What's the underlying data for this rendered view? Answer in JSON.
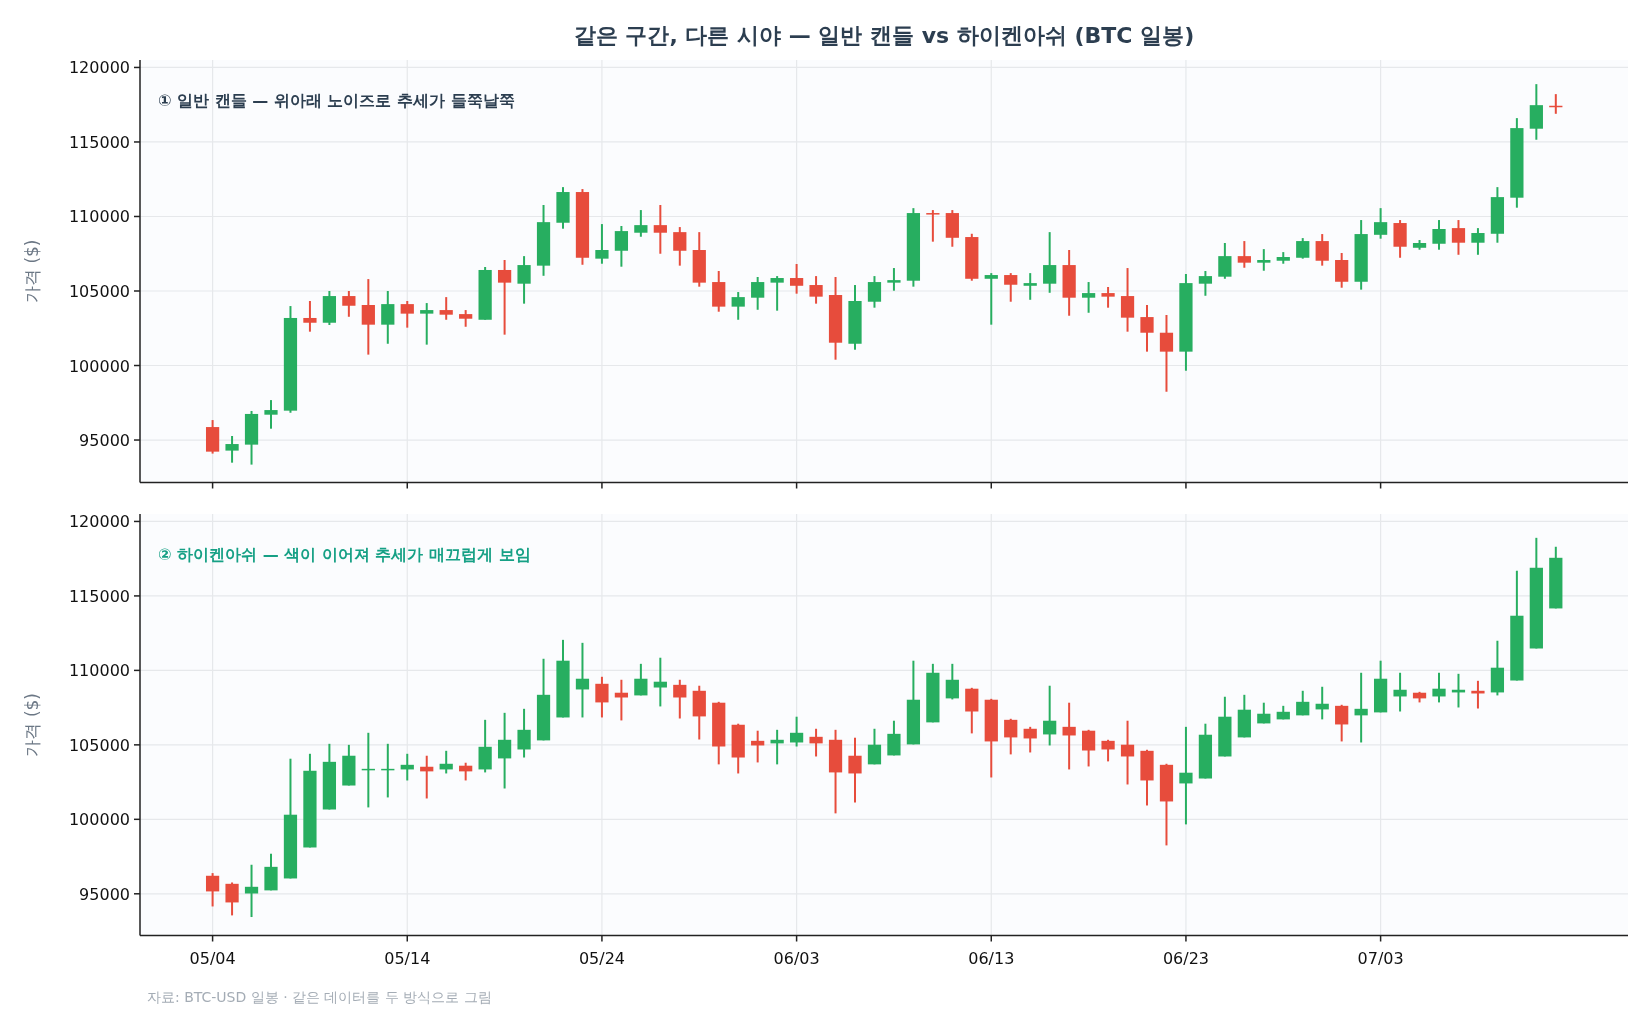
{
  "chart_data": [
    {
      "type": "candlestick",
      "title": "같은 구간, 다른 시야 — 일반 캔들 vs 하이켄아쉬 (BTC 일봉)",
      "subtitle": "① 일반 캔들 — 위아래 노이즈로 추세가 들쭉날쭉",
      "ylabel": "가격 ($)",
      "x": [
        "--05-04",
        "--05-05",
        "--05-06",
        "--05-07",
        "--05-08",
        "--05-09",
        "--05-10",
        "--05-11",
        "--05-12",
        "--05-13",
        "--05-14",
        "--05-15",
        "--05-16",
        "--05-17",
        "--05-18",
        "--05-19",
        "--05-20",
        "--05-21",
        "--05-22",
        "--05-23",
        "--05-24",
        "--05-25",
        "--05-26",
        "--05-27",
        "--05-28",
        "--05-29",
        "--05-30",
        "--05-31",
        "--06-01",
        "--06-02",
        "--06-03",
        "--06-04",
        "--06-05",
        "--06-06",
        "--06-07",
        "--06-08",
        "--06-09",
        "--06-10",
        "--06-11",
        "--06-12",
        "--06-13",
        "--06-14",
        "--06-15",
        "--06-16",
        "--06-17",
        "--06-18",
        "--06-19",
        "--06-20",
        "--06-21",
        "--06-22",
        "--06-23",
        "--06-24",
        "--06-25",
        "--06-26",
        "--06-27",
        "--06-28",
        "--06-29",
        "--06-30",
        "--07-01",
        "--07-02",
        "--07-03",
        "--07-04",
        "--07-05",
        "--07-06",
        "--07-07",
        "--07-08",
        "--07-09",
        "--07-10",
        "--07-11",
        "--07-12"
      ],
      "ohlc": [
        [
          95870,
          96340,
          94090,
          94220
        ],
        [
          94290,
          95270,
          93480,
          94730
        ],
        [
          94690,
          96950,
          93350,
          96750
        ],
        [
          96700,
          97680,
          95760,
          97010
        ],
        [
          96970,
          103990,
          96830,
          103190
        ],
        [
          103190,
          104330,
          102270,
          102870
        ],
        [
          102870,
          105000,
          102720,
          104660
        ],
        [
          104660,
          105000,
          103270,
          104010
        ],
        [
          104060,
          105800,
          100730,
          102740
        ],
        [
          102740,
          105000,
          101460,
          104120
        ],
        [
          104120,
          104330,
          102540,
          103480
        ],
        [
          103480,
          104190,
          101400,
          103720
        ],
        [
          103720,
          104590,
          103070,
          103410
        ],
        [
          103450,
          103720,
          102600,
          103140
        ],
        [
          103070,
          106610,
          103070,
          106410
        ],
        [
          106410,
          107080,
          102070,
          105560
        ],
        [
          105490,
          107340,
          104150,
          106740
        ],
        [
          106700,
          110770,
          106020,
          109620
        ],
        [
          109580,
          111970,
          109180,
          111640
        ],
        [
          111640,
          111840,
          106760,
          107230
        ],
        [
          107170,
          109490,
          106830,
          107750
        ],
        [
          107700,
          109360,
          106630,
          109020
        ],
        [
          108910,
          110430,
          108640,
          109420
        ],
        [
          109420,
          110770,
          107500,
          108910
        ],
        [
          108950,
          109290,
          106700,
          107700
        ],
        [
          107750,
          108950,
          105290,
          105560
        ],
        [
          105600,
          106340,
          103610,
          103950
        ],
        [
          103950,
          104930,
          103070,
          104590
        ],
        [
          104550,
          105940,
          103740,
          105600
        ],
        [
          105560,
          106000,
          103680,
          105870
        ],
        [
          105870,
          106810,
          104820,
          105350
        ],
        [
          105400,
          106000,
          104150,
          104620
        ],
        [
          104730,
          105940,
          100390,
          101530
        ],
        [
          101460,
          105400,
          101060,
          104330
        ],
        [
          104280,
          106000,
          103880,
          105600
        ],
        [
          105560,
          106540,
          105020,
          105730
        ],
        [
          105690,
          110560,
          105290,
          110230
        ],
        [
          110230,
          110430,
          108310,
          110180
        ],
        [
          110230,
          110430,
          107970,
          108570
        ],
        [
          108620,
          108840,
          105690,
          105820
        ],
        [
          105820,
          106200,
          102740,
          106070
        ],
        [
          106070,
          106200,
          104280,
          105420
        ],
        [
          105350,
          106200,
          104410,
          105530
        ],
        [
          105490,
          108950,
          104880,
          106740
        ],
        [
          106740,
          107750,
          103340,
          104550
        ],
        [
          104550,
          105600,
          103540,
          104860
        ],
        [
          104860,
          105270,
          103880,
          104620
        ],
        [
          104660,
          106540,
          102270,
          103210
        ],
        [
          103250,
          104060,
          100930,
          102200
        ],
        [
          102200,
          103390,
          98240,
          100930
        ],
        [
          100930,
          106140,
          99650,
          105530
        ],
        [
          105490,
          106340,
          104680,
          106000
        ],
        [
          105960,
          108220,
          105820,
          107340
        ],
        [
          107340,
          108350,
          106560,
          106900
        ],
        [
          106900,
          107810,
          106360,
          107080
        ],
        [
          107030,
          107610,
          106830,
          107280
        ],
        [
          107230,
          108550,
          107170,
          108350
        ],
        [
          108350,
          108820,
          106700,
          107030
        ],
        [
          107080,
          107550,
          105220,
          105620
        ],
        [
          105620,
          109760,
          105090,
          108820
        ],
        [
          108770,
          110560,
          108510,
          109620
        ],
        [
          109560,
          109760,
          107230,
          107970
        ],
        [
          107900,
          108420,
          107770,
          108220
        ],
        [
          108170,
          109760,
          107770,
          109160
        ],
        [
          109220,
          109760,
          107430,
          108240
        ],
        [
          108240,
          109220,
          107430,
          108890
        ],
        [
          108840,
          111970,
          108240,
          111300
        ],
        [
          111260,
          116600,
          110590,
          115930
        ],
        [
          115890,
          118880,
          115150,
          117470
        ],
        [
          117430,
          118210,
          116890,
          117400
        ]
      ],
      "colors": [
        "#e74c3c",
        "#27ae60",
        "#27ae60",
        "#27ae60",
        "#27ae60",
        "#e74c3c",
        "#27ae60",
        "#e74c3c",
        "#e74c3c",
        "#27ae60",
        "#e74c3c",
        "#27ae60",
        "#e74c3c",
        "#e74c3c",
        "#27ae60",
        "#e74c3c",
        "#27ae60",
        "#27ae60",
        "#27ae60",
        "#e74c3c",
        "#27ae60",
        "#27ae60",
        "#27ae60",
        "#e74c3c",
        "#e74c3c",
        "#e74c3c",
        "#e74c3c",
        "#27ae60",
        "#27ae60",
        "#27ae60",
        "#e74c3c",
        "#e74c3c",
        "#e74c3c",
        "#27ae60",
        "#27ae60",
        "#27ae60",
        "#27ae60",
        "#e74c3c",
        "#e74c3c",
        "#e74c3c",
        "#27ae60",
        "#e74c3c",
        "#27ae60",
        "#27ae60",
        "#e74c3c",
        "#27ae60",
        "#e74c3c",
        "#e74c3c",
        "#e74c3c",
        "#e74c3c",
        "#27ae60",
        "#27ae60",
        "#27ae60",
        "#e74c3c",
        "#27ae60",
        "#27ae60",
        "#27ae60",
        "#e74c3c",
        "#e74c3c",
        "#27ae60",
        "#27ae60",
        "#e74c3c",
        "#27ae60",
        "#27ae60",
        "#e74c3c",
        "#27ae60",
        "#27ae60",
        "#27ae60",
        "#27ae60",
        "#e74c3c"
      ],
      "xlim": [
        "--04-30T06:30",
        "--07-15T17:00"
      ],
      "xticks": [
        {
          "value": "--05-04",
          "label": null
        },
        {
          "value": "--05-14",
          "label": null
        },
        {
          "value": "--05-24",
          "label": null
        },
        {
          "value": "--06-03",
          "label": null
        },
        {
          "value": "--06-13",
          "label": null
        },
        {
          "value": "--06-23",
          "label": null
        },
        {
          "value": "--07-03",
          "label": null
        }
      ],
      "ylim": [
        92150,
        120500
      ],
      "yticks": [
        95000,
        100000,
        105000,
        110000,
        115000,
        120000
      ],
      "grid": true,
      "tick_labels": "y"
    },
    {
      "type": "candlestick",
      "subtitle": "② 하이켄아쉬 — 색이 이어져 추세가 매끄럽게 보임",
      "ylabel": "가격 ($)",
      "x": [
        "--05-04",
        "--05-05",
        "--05-06",
        "--05-07",
        "--05-08",
        "--05-09",
        "--05-10",
        "--05-11",
        "--05-12",
        "--05-13",
        "--05-14",
        "--05-15",
        "--05-16",
        "--05-17",
        "--05-18",
        "--05-19",
        "--05-20",
        "--05-21",
        "--05-22",
        "--05-23",
        "--05-24",
        "--05-25",
        "--05-26",
        "--05-27",
        "--05-28",
        "--05-29",
        "--05-30",
        "--05-31",
        "--06-01",
        "--06-02",
        "--06-03",
        "--06-04",
        "--06-05",
        "--06-06",
        "--06-07",
        "--06-08",
        "--06-09",
        "--06-10",
        "--06-11",
        "--06-12",
        "--06-13",
        "--06-14",
        "--06-15",
        "--06-16",
        "--06-17",
        "--06-18",
        "--06-19",
        "--06-20",
        "--06-21",
        "--06-22",
        "--06-23",
        "--06-24",
        "--06-25",
        "--06-26",
        "--06-27",
        "--06-28",
        "--06-29",
        "--06-30",
        "--07-01",
        "--07-02",
        "--07-03",
        "--07-04",
        "--07-05",
        "--07-06",
        "--07-07",
        "--07-08",
        "--07-09",
        "--07-10",
        "--07-11",
        "--07-12"
      ],
      "ohlc": [
        [
          96210,
          96390,
          94150,
          95160
        ],
        [
          95670,
          95760,
          93550,
          94420
        ],
        [
          95020,
          96950,
          93440,
          95470
        ],
        [
          95230,
          97690,
          95230,
          96810
        ],
        [
          96030,
          104070,
          96030,
          100310
        ],
        [
          98110,
          104400,
          98110,
          103260
        ],
        [
          100660,
          105070,
          100660,
          103860
        ],
        [
          102270,
          105000,
          102270,
          104270
        ],
        [
          103300,
          105810,
          100800,
          103390
        ],
        [
          103300,
          105070,
          101470,
          103390
        ],
        [
          103350,
          104400,
          102610,
          103660
        ],
        [
          103530,
          104270,
          101400,
          103220
        ],
        [
          103350,
          104600,
          103080,
          103730
        ],
        [
          103600,
          103800,
          102610,
          103220
        ],
        [
          103350,
          106680,
          103150,
          104870
        ],
        [
          104090,
          107150,
          102070,
          105340
        ],
        [
          104690,
          107420,
          104150,
          106010
        ],
        [
          105300,
          110780,
          105300,
          108360
        ],
        [
          106840,
          112050,
          106840,
          110650
        ],
        [
          108720,
          111850,
          106840,
          109440
        ],
        [
          109100,
          109570,
          106840,
          107850
        ],
        [
          108500,
          109370,
          106640,
          108180
        ],
        [
          108320,
          110440,
          108320,
          109440
        ],
        [
          108850,
          110850,
          107580,
          109240
        ],
        [
          109030,
          109370,
          106770,
          108180
        ],
        [
          108630,
          108970,
          105360,
          106910
        ],
        [
          107830,
          107890,
          103690,
          104890
        ],
        [
          106350,
          106420,
          103080,
          104150
        ],
        [
          105270,
          105950,
          103820,
          104960
        ],
        [
          105100,
          106010,
          103690,
          105340
        ],
        [
          105160,
          106890,
          104890,
          105810
        ],
        [
          105540,
          106080,
          104220,
          105100
        ],
        [
          105340,
          106010,
          100400,
          103150
        ],
        [
          104270,
          105480,
          101130,
          103080
        ],
        [
          103690,
          106080,
          103690,
          105010
        ],
        [
          104290,
          106620,
          104290,
          105740
        ],
        [
          105030,
          110650,
          105030,
          108030
        ],
        [
          106510,
          110440,
          106510,
          109840
        ],
        [
          108120,
          110440,
          108050,
          109370
        ],
        [
          108770,
          108830,
          105770,
          107240
        ],
        [
          108030,
          108090,
          102810,
          105230
        ],
        [
          106680,
          106750,
          104360,
          105500
        ],
        [
          106080,
          106210,
          104490,
          105430
        ],
        [
          105700,
          108970,
          104960,
          106620
        ],
        [
          106210,
          107830,
          103350,
          105630
        ],
        [
          105950,
          106010,
          103550,
          104620
        ],
        [
          105270,
          105340,
          103890,
          104690
        ],
        [
          105010,
          106620,
          102340,
          104220
        ],
        [
          104600,
          104670,
          100930,
          102610
        ],
        [
          103660,
          103730,
          98250,
          101200
        ],
        [
          102410,
          106210,
          99660,
          103130
        ],
        [
          102740,
          106420,
          102740,
          105680
        ],
        [
          104220,
          108230,
          104220,
          106890
        ],
        [
          105500,
          108360,
          105500,
          107360
        ],
        [
          106440,
          107830,
          106440,
          107090
        ],
        [
          106710,
          107620,
          106710,
          107220
        ],
        [
          106980,
          108630,
          106980,
          107890
        ],
        [
          107380,
          108900,
          106710,
          107760
        ],
        [
          107620,
          107690,
          105230,
          106370
        ],
        [
          106980,
          109840,
          105160,
          107420
        ],
        [
          107180,
          110650,
          107180,
          109440
        ],
        [
          108250,
          109840,
          107240,
          108700
        ],
        [
          108500,
          108560,
          107850,
          108120
        ],
        [
          108250,
          109840,
          107850,
          108770
        ],
        [
          108520,
          109770,
          107510,
          108700
        ],
        [
          108630,
          109300,
          107440,
          108450
        ],
        [
          108520,
          111990,
          108320,
          110180
        ],
        [
          109320,
          116690,
          109320,
          113670
        ],
        [
          111470,
          118900,
          111470,
          116890
        ],
        [
          114160,
          118300,
          114160,
          117560
        ]
      ],
      "colors": [
        "#e74c3c",
        "#e74c3c",
        "#27ae60",
        "#27ae60",
        "#27ae60",
        "#27ae60",
        "#27ae60",
        "#27ae60",
        "#27ae60",
        "#27ae60",
        "#27ae60",
        "#e74c3c",
        "#27ae60",
        "#e74c3c",
        "#27ae60",
        "#27ae60",
        "#27ae60",
        "#27ae60",
        "#27ae60",
        "#27ae60",
        "#e74c3c",
        "#e74c3c",
        "#27ae60",
        "#27ae60",
        "#e74c3c",
        "#e74c3c",
        "#e74c3c",
        "#e74c3c",
        "#e74c3c",
        "#27ae60",
        "#27ae60",
        "#e74c3c",
        "#e74c3c",
        "#e74c3c",
        "#27ae60",
        "#27ae60",
        "#27ae60",
        "#27ae60",
        "#27ae60",
        "#e74c3c",
        "#e74c3c",
        "#e74c3c",
        "#e74c3c",
        "#27ae60",
        "#e74c3c",
        "#e74c3c",
        "#e74c3c",
        "#e74c3c",
        "#e74c3c",
        "#e74c3c",
        "#27ae60",
        "#27ae60",
        "#27ae60",
        "#27ae60",
        "#27ae60",
        "#27ae60",
        "#27ae60",
        "#27ae60",
        "#e74c3c",
        "#27ae60",
        "#27ae60",
        "#27ae60",
        "#e74c3c",
        "#27ae60",
        "#27ae60",
        "#e74c3c",
        "#27ae60",
        "#27ae60",
        "#27ae60",
        "#27ae60"
      ],
      "xlim": [
        "--04-30T06:30",
        "--07-15T17:00"
      ],
      "xticks": [
        {
          "value": "--05-04",
          "label": "05/04"
        },
        {
          "value": "--05-14",
          "label": "05/14"
        },
        {
          "value": "--05-24",
          "label": "05/24"
        },
        {
          "value": "--06-03",
          "label": "06/03"
        },
        {
          "value": "--06-13",
          "label": "06/13"
        },
        {
          "value": "--06-23",
          "label": "06/23"
        },
        {
          "value": "--07-03",
          "label": "07/03"
        }
      ],
      "ylim": [
        92200,
        120500
      ],
      "yticks": [
        95000,
        100000,
        105000,
        110000,
        115000,
        120000
      ],
      "grid": true,
      "annotations": [
        "자료: BTC-USD 일봉 · 같은 데이터를 두 방식으로 그림"
      ]
    }
  ]
}
